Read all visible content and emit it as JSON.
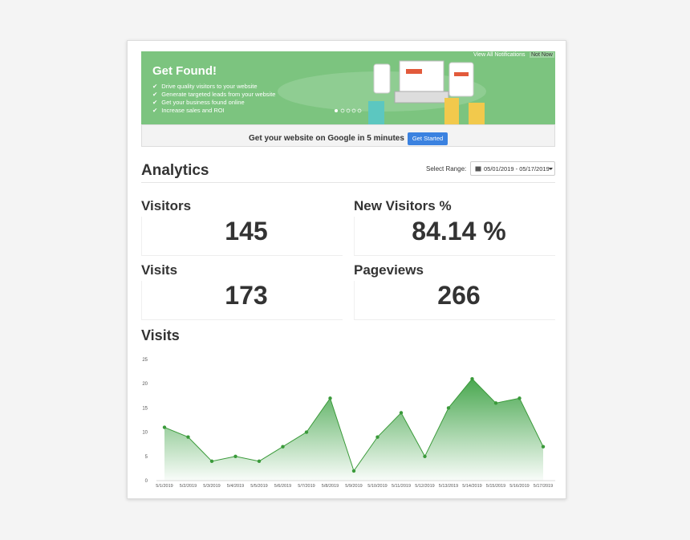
{
  "notifications": {
    "view_all": "View All Notifications",
    "dismiss": "Not Now"
  },
  "banner": {
    "title": "Get Found!",
    "bullets": [
      "Drive quality visitors to your website",
      "Generate targeted leads from your website",
      "Get your business found online",
      "Increase sales and ROI"
    ],
    "cta_text": "Get your website on Google in 5 minutes",
    "cta_button": "Get Started"
  },
  "analytics": {
    "title": "Analytics",
    "range_label": "Select Range:",
    "range_value": "05/01/2019 - 05/17/2019",
    "stats": [
      {
        "label": "Visitors",
        "value": "145"
      },
      {
        "label": "New Visitors %",
        "value": "84.14 %"
      },
      {
        "label": "Visits",
        "value": "173"
      },
      {
        "label": "Pageviews",
        "value": "266"
      }
    ]
  },
  "chart_data": {
    "type": "area",
    "title": "Visits",
    "categories": [
      "5/1/2019",
      "5/2/2019",
      "5/3/2019",
      "5/4/2019",
      "5/5/2019",
      "5/6/2019",
      "5/7/2019",
      "5/8/2019",
      "5/9/2019",
      "5/10/2019",
      "5/11/2019",
      "5/12/2019",
      "5/13/2019",
      "5/14/2019",
      "5/15/2019",
      "5/16/2019",
      "5/17/2019"
    ],
    "values": [
      11,
      9,
      4,
      5,
      4,
      7,
      10,
      17,
      2,
      9,
      14,
      5,
      15,
      21,
      16,
      17,
      7
    ],
    "color": "#3a9a3a",
    "ylim": [
      0,
      25
    ],
    "yticks": [
      0,
      5,
      10,
      15,
      20,
      25
    ],
    "grid": false
  }
}
